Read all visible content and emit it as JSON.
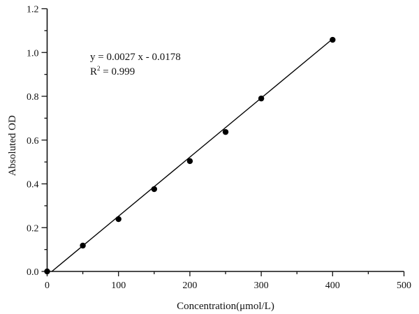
{
  "chart_data": {
    "type": "scatter",
    "title": "",
    "xlabel": "Concentration(μmol/L)",
    "ylabel": "Absoluted OD",
    "xlim": [
      0,
      500
    ],
    "ylim": [
      0.0,
      1.2
    ],
    "x_ticks": [
      0,
      100,
      200,
      300,
      400,
      500
    ],
    "x_tick_labels": [
      "0",
      "100",
      "200",
      "300",
      "400",
      "500"
    ],
    "x_minor_step": 50,
    "y_ticks": [
      0.0,
      0.2,
      0.4,
      0.6,
      0.8,
      1.0,
      1.2
    ],
    "y_tick_labels": [
      "0.0",
      "0.2",
      "0.4",
      "0.6",
      "0.8",
      "1.0",
      "1.2"
    ],
    "y_minor_step": 0.1,
    "grid": false,
    "legend": null,
    "series": [
      {
        "name": "measured",
        "kind": "scatter",
        "x": [
          0,
          50,
          100,
          150,
          200,
          250,
          300,
          400
        ],
        "y": [
          0.0,
          0.118,
          0.239,
          0.376,
          0.504,
          0.637,
          0.79,
          1.058
        ]
      },
      {
        "name": "linear fit",
        "kind": "line",
        "slope": 0.0027,
        "intercept": -0.0178,
        "x_range": [
          6.6,
          400
        ]
      }
    ],
    "annotations": [
      {
        "text": "y = 0.0027 x - 0.0178"
      },
      {
        "text_base": "R",
        "text_sup": "2",
        "text_rest": " = 0.999"
      }
    ]
  },
  "colors": {
    "axis": "#111111",
    "marker": "#000000",
    "line": "#000000",
    "background": "#ffffff"
  }
}
